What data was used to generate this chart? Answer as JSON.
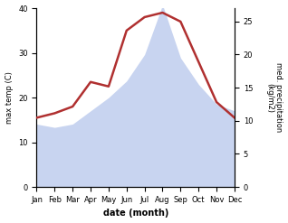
{
  "months": [
    "Jan",
    "Feb",
    "Mar",
    "Apr",
    "May",
    "Jun",
    "Jul",
    "Aug",
    "Sep",
    "Oct",
    "Nov",
    "Dec"
  ],
  "temp": [
    15.5,
    16.5,
    18.0,
    23.5,
    22.5,
    35.0,
    38.0,
    39.0,
    37.0,
    28.0,
    19.0,
    15.5
  ],
  "precip": [
    9.5,
    9.0,
    9.5,
    11.5,
    13.5,
    16.0,
    20.0,
    27.5,
    19.5,
    15.5,
    12.5,
    11.5
  ],
  "temp_color": "#b03030",
  "precip_fill_color": "#c8d4f0",
  "temp_ylim": [
    0,
    40
  ],
  "precip_ylim": [
    0,
    27
  ],
  "temp_yticks": [
    0,
    10,
    20,
    30,
    40
  ],
  "precip_yticks": [
    0,
    5,
    10,
    15,
    20,
    25
  ],
  "ylabel_left": "max temp (C)",
  "ylabel_right": "med. precipitation\n(kg/m2)",
  "xlabel": "date (month)",
  "bg_color": "#ffffff",
  "temp_lw": 1.8
}
